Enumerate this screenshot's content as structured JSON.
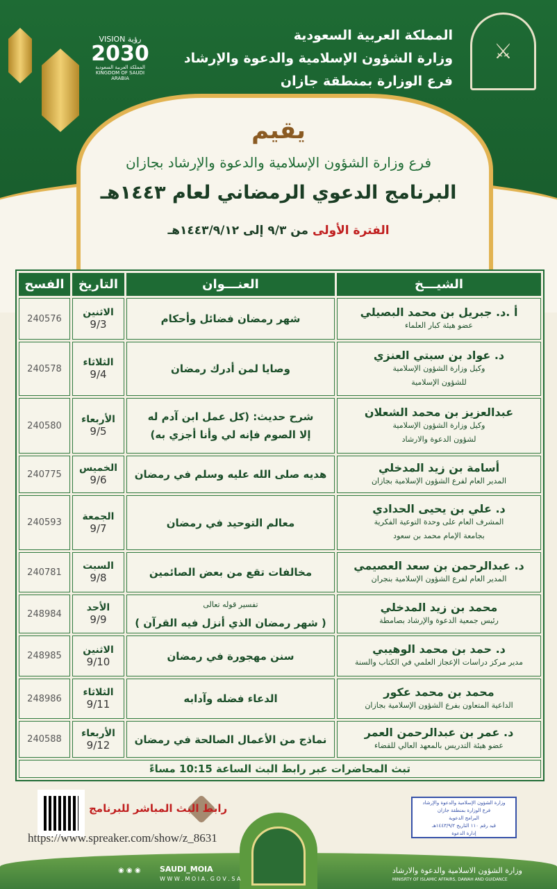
{
  "header": {
    "lines": [
      "المملكة العربية السعودية",
      "وزارة الشؤون الإسلامية والدعوة والإرشاد",
      "فرع الوزارة بمنطقة جازان"
    ],
    "vision": {
      "word": "VISION رؤية",
      "year": "2030",
      "kingdom_ar": "المملكة العربية السعودية",
      "kingdom_en": "KINGDOM OF SAUDI ARABIA"
    }
  },
  "intro": {
    "yuqim": "يقيم",
    "organizer": "فرع وزارة الشؤون الإسلامية والدعوة والإرشاد بجازان",
    "program": "البرنامج الدعوي الرمضاني لعام ١٤٤٣هـ",
    "period_label": "الفترة الأولى",
    "period_range": "من ٩/٣ إلى ١٤٤٣/٩/١٢هـ"
  },
  "table": {
    "headers": {
      "sheikh": "الشيـــخ",
      "title": "العنـــوان",
      "date": "التاريخ",
      "code": "الفسح"
    },
    "rows": [
      {
        "name": "أ .د. جبريل بن محمد البصيلي",
        "role": [
          "عضو هيئة كبار العلماء"
        ],
        "title": [
          "شهر رمضان فضائل وأحكام"
        ],
        "day": "الاثنين",
        "date": "9/3",
        "code": "240576"
      },
      {
        "name": "د. عواد بن سبتي العنزي",
        "role": [
          "وكيل وزارة الشؤون الإسلامية",
          "للشؤون الإسلامية"
        ],
        "title": [
          "وصايا لمن أدرك رمضان"
        ],
        "day": "الثلاثاء",
        "date": "9/4",
        "code": "240578"
      },
      {
        "name": "عبدالعزيز بن محمد الشعلان",
        "role": [
          "وكيل وزارة الشؤون الإسلامية",
          "لشؤون الدعوة والارشاد"
        ],
        "title": [
          "شرح حديث: (كل عمل ابن آدم له",
          "إلا الصوم فإنه لي وأنا أجزي به)"
        ],
        "day": "الأربعاء",
        "date": "9/5",
        "code": "240580"
      },
      {
        "name": "أسامة بن زيد المدخلي",
        "role": [
          "المدير العام لفرع الشؤون الإسلامية بجازان"
        ],
        "title": [
          "هديه صلى الله عليه وسلم في رمضان"
        ],
        "day": "الخميس",
        "date": "9/6",
        "code": "240775"
      },
      {
        "name": "د. علي بن يحيى الحدادي",
        "role": [
          "المشرف العام على وحدة التوعية الفكرية",
          "بجامعة الإمام محمد بن سعود"
        ],
        "title": [
          "معالم التوحيد في رمضان"
        ],
        "day": "الجمعة",
        "date": "9/7",
        "code": "240593"
      },
      {
        "name": "د. عبدالرحمن بن سعد العصيمي",
        "role": [
          "المدير العام لفرع الشؤون الإسلامية بنجران"
        ],
        "title": [
          "مخالفات تقع من بعض الصائمين"
        ],
        "day": "السبت",
        "date": "9/8",
        "code": "240781"
      },
      {
        "name": "محمد بن زيد المدخلي",
        "role": [
          "رئيس جمعية الدعوة والإرشاد بصامطة"
        ],
        "title_pre": "تفسير قوله تعالى",
        "title": [
          "( شهر رمضان الذي أنزل فيه القرآن )"
        ],
        "day": "الأحد",
        "date": "9/9",
        "code": "248984"
      },
      {
        "name": "د. حمد بن محمد الوهيبي",
        "role": [
          "مدير مركز دراسات الإعجاز العلمي في الكتاب والسنة"
        ],
        "title": [
          "سنن مهجورة في رمضان"
        ],
        "day": "الاثنين",
        "date": "9/10",
        "code": "248985"
      },
      {
        "name": "محمد بن محمد عكور",
        "role": [
          "الداعية المتعاون بفرع الشؤون الإسلامية بجازان"
        ],
        "title": [
          "الدعاء فضله وآدابه"
        ],
        "day": "الثلاثاء",
        "date": "9/11",
        "code": "248986"
      },
      {
        "name": "د. عمر بن عبدالرحمن العمر",
        "role": [
          "عضو هيئة التدريس بالمعهد العالي للقضاء"
        ],
        "title": [
          "نماذج من الأعمال الصالحة في رمضان"
        ],
        "day": "الأربعاء",
        "date": "9/12",
        "code": "240588"
      }
    ],
    "footer": "تبث المحاضرات عبر رابط البث الساعة 10:15 مساءً"
  },
  "live": {
    "label": "رابط البث المباشر للبرنامج",
    "url": "https://www.spreaker.com/show/z_8631"
  },
  "stamp": {
    "lines": [
      "وزارة الشؤون الإسلامية والدعوة والإرشاد",
      "فرع الوزارة بمنطقة جازان",
      "البرامج الدعوية",
      "قيد رقم ١١٠ التاريخ ١٤٤٣/٩/٢هـ",
      "إدارة الدعوة"
    ]
  },
  "bottom": {
    "handle": "SAUDI_MOIA",
    "site": "W W W . M O I A . G O V . S A",
    "ministry_ar": "وزارة الشؤون الاسلامية والدعوة والارشاد",
    "ministry_en": "MINISRTY OF ISLAMIC AFFAIRS, DAWAH AND GUIDANCE"
  },
  "colors": {
    "green": "#1e6b34",
    "gold": "#e2b351",
    "red": "#c01e1e"
  }
}
